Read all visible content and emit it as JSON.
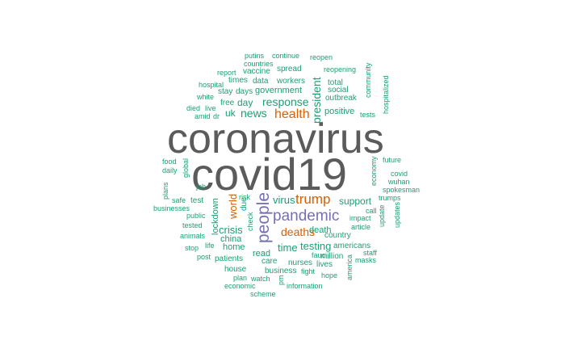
{
  "word_cloud": {
    "palette": {
      "dominant": "#5b5b5b",
      "secondary": "#7570b3",
      "accent": "#d95f02",
      "common": "#1b9e77"
    },
    "words": [
      {
        "text": "coronavirus",
        "color": "#5b5b5b"
      },
      {
        "text": "covid19",
        "color": "#5b5b5b"
      },
      {
        "text": "pandemic",
        "color": "#7570b3"
      },
      {
        "text": "people",
        "color": "#7570b3"
      },
      {
        "text": "trump",
        "color": "#d95f02"
      },
      {
        "text": "health",
        "color": "#d95f02"
      },
      {
        "text": "deaths",
        "color": "#d95f02"
      },
      {
        "text": "world",
        "color": "#d95f02"
      },
      {
        "text": "news",
        "color": "#1b9e77"
      },
      {
        "text": "response",
        "color": "#1b9e77"
      },
      {
        "text": "president",
        "color": "#1b9e77"
      },
      {
        "text": "crisis",
        "color": "#1b9e77"
      },
      {
        "text": "virus",
        "color": "#1b9e77"
      },
      {
        "text": "testing",
        "color": "#1b9e77"
      },
      {
        "text": "time",
        "color": "#1b9e77"
      },
      {
        "text": "government",
        "color": "#1b9e77"
      },
      {
        "text": "uk",
        "color": "#1b9e77"
      },
      {
        "text": "day",
        "color": "#1b9e77"
      },
      {
        "text": "support",
        "color": "#1b9e77"
      },
      {
        "text": "death",
        "color": "#1b9e77"
      },
      {
        "text": "positive",
        "color": "#1b9e77"
      },
      {
        "text": "lockdown",
        "color": "#1b9e77"
      },
      {
        "text": "china",
        "color": "#1b9e77"
      },
      {
        "text": "home",
        "color": "#1b9e77"
      },
      {
        "text": "read",
        "color": "#1b9e77"
      },
      {
        "text": "care",
        "color": "#1b9e77"
      },
      {
        "text": "patients",
        "color": "#1b9e77"
      },
      {
        "text": "due",
        "color": "#1b9e77"
      },
      {
        "text": "test",
        "color": "#1b9e77"
      },
      {
        "text": "spread",
        "color": "#1b9e77"
      },
      {
        "text": "vaccine",
        "color": "#1b9e77"
      },
      {
        "text": "workers",
        "color": "#1b9e77"
      },
      {
        "text": "days",
        "color": "#1b9e77"
      },
      {
        "text": "stay",
        "color": "#1b9e77"
      },
      {
        "text": "free",
        "color": "#1b9e77"
      },
      {
        "text": "times",
        "color": "#1b9e77"
      },
      {
        "text": "data",
        "color": "#1b9e77"
      },
      {
        "text": "total",
        "color": "#1b9e77"
      },
      {
        "text": "social",
        "color": "#1b9e77"
      },
      {
        "text": "outbreak",
        "color": "#1b9e77"
      },
      {
        "text": "reopening",
        "color": "#1b9e77"
      },
      {
        "text": "country",
        "color": "#1b9e77"
      },
      {
        "text": "nurses",
        "color": "#1b9e77"
      },
      {
        "text": "million",
        "color": "#1b9e77"
      },
      {
        "text": "lives",
        "color": "#1b9e77"
      },
      {
        "text": "fauci",
        "color": "#1b9e77"
      },
      {
        "text": "business",
        "color": "#1b9e77"
      },
      {
        "text": "fight",
        "color": "#1b9e77"
      },
      {
        "text": "americans",
        "color": "#1b9e77"
      },
      {
        "text": "house",
        "color": "#1b9e77"
      },
      {
        "text": "tested",
        "color": "#1b9e77"
      },
      {
        "text": "public",
        "color": "#1b9e77"
      },
      {
        "text": "safe",
        "color": "#1b9e77"
      },
      {
        "text": "putins",
        "color": "#1b9e77"
      },
      {
        "text": "continue",
        "color": "#1b9e77"
      },
      {
        "text": "reopen",
        "color": "#1b9e77"
      },
      {
        "text": "countries",
        "color": "#1b9e77"
      },
      {
        "text": "community",
        "color": "#1b9e77"
      },
      {
        "text": "report",
        "color": "#1b9e77"
      },
      {
        "text": "hospital",
        "color": "#1b9e77"
      },
      {
        "text": "hospitalized",
        "color": "#1b9e77"
      },
      {
        "text": "white",
        "color": "#1b9e77"
      },
      {
        "text": "died",
        "color": "#1b9e77"
      },
      {
        "text": "live",
        "color": "#1b9e77"
      },
      {
        "text": "amid",
        "color": "#1b9e77"
      },
      {
        "text": "dr",
        "color": "#1b9e77"
      },
      {
        "text": "tests",
        "color": "#1b9e77"
      },
      {
        "text": "food",
        "color": "#1b9e77"
      },
      {
        "text": "daily",
        "color": "#1b9e77"
      },
      {
        "text": "global",
        "color": "#1b9e77"
      },
      {
        "text": "job",
        "color": "#1b9e77"
      },
      {
        "text": "plans",
        "color": "#1b9e77"
      },
      {
        "text": "businesses",
        "color": "#1b9e77"
      },
      {
        "text": "future",
        "color": "#1b9e77"
      },
      {
        "text": "economy",
        "color": "#1b9e77"
      },
      {
        "text": "covid",
        "color": "#1b9e77"
      },
      {
        "text": "wuhan",
        "color": "#1b9e77"
      },
      {
        "text": "spokesman",
        "color": "#1b9e77"
      },
      {
        "text": "trumps",
        "color": "#1b9e77"
      },
      {
        "text": "update",
        "color": "#1b9e77"
      },
      {
        "text": "updates",
        "color": "#1b9e77"
      },
      {
        "text": "call",
        "color": "#1b9e77"
      },
      {
        "text": "impact",
        "color": "#1b9e77"
      },
      {
        "text": "article",
        "color": "#1b9e77"
      },
      {
        "text": "staff",
        "color": "#1b9e77"
      },
      {
        "text": "masks",
        "color": "#1b9e77"
      },
      {
        "text": "america",
        "color": "#1b9e77"
      },
      {
        "text": "risk",
        "color": "#1b9e77"
      },
      {
        "text": "check",
        "color": "#1b9e77"
      },
      {
        "text": "animals",
        "color": "#1b9e77"
      },
      {
        "text": "stop",
        "color": "#1b9e77"
      },
      {
        "text": "life",
        "color": "#1b9e77"
      },
      {
        "text": "post",
        "color": "#1b9e77"
      },
      {
        "text": "plan",
        "color": "#1b9e77"
      },
      {
        "text": "watch",
        "color": "#1b9e77"
      },
      {
        "text": "economic",
        "color": "#1b9e77"
      },
      {
        "text": "scheme",
        "color": "#1b9e77"
      },
      {
        "text": "information",
        "color": "#1b9e77"
      },
      {
        "text": "hope",
        "color": "#1b9e77"
      },
      {
        "text": "uk",
        "color": "#1b9e77"
      },
      {
        "text": "pm",
        "color": "#1b9e77"
      }
    ]
  }
}
